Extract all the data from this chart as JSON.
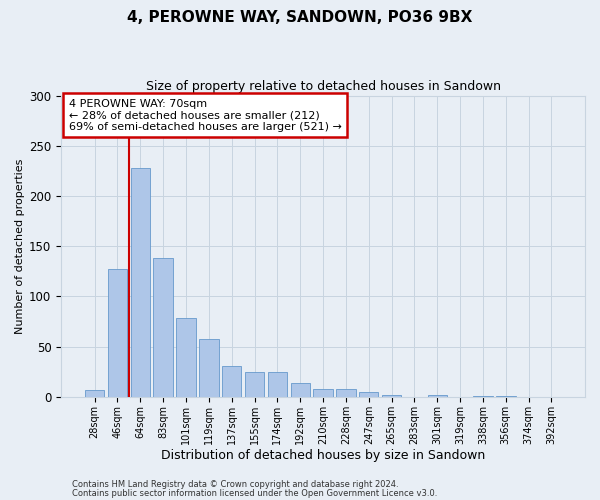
{
  "title": "4, PEROWNE WAY, SANDOWN, PO36 9BX",
  "subtitle": "Size of property relative to detached houses in Sandown",
  "xlabel": "Distribution of detached houses by size in Sandown",
  "ylabel": "Number of detached properties",
  "bin_labels": [
    "28sqm",
    "46sqm",
    "64sqm",
    "83sqm",
    "101sqm",
    "119sqm",
    "137sqm",
    "155sqm",
    "174sqm",
    "192sqm",
    "210sqm",
    "228sqm",
    "247sqm",
    "265sqm",
    "283sqm",
    "301sqm",
    "319sqm",
    "338sqm",
    "356sqm",
    "374sqm",
    "392sqm"
  ],
  "bar_values": [
    7,
    127,
    228,
    138,
    79,
    58,
    31,
    25,
    25,
    14,
    8,
    8,
    5,
    2,
    0,
    2,
    0,
    1,
    1,
    0,
    0
  ],
  "bar_color": "#aec6e8",
  "bar_edge_color": "#6699cc",
  "vline_color": "#cc0000",
  "ylim": [
    0,
    300
  ],
  "yticks": [
    0,
    50,
    100,
    150,
    200,
    250,
    300
  ],
  "annotation_title": "4 PEROWNE WAY: 70sqm",
  "annotation_line1": "← 28% of detached houses are smaller (212)",
  "annotation_line2": "69% of semi-detached houses are larger (521) →",
  "annotation_box_facecolor": "#ffffff",
  "annotation_box_edgecolor": "#cc0000",
  "footer1": "Contains HM Land Registry data © Crown copyright and database right 2024.",
  "footer2": "Contains public sector information licensed under the Open Government Licence v3.0.",
  "bg_color": "#e8eef5",
  "plot_bg_color": "#e8eef5",
  "grid_color": "#c8d4e0",
  "title_fontsize": 11,
  "subtitle_fontsize": 9,
  "xlabel_fontsize": 9,
  "ylabel_fontsize": 8,
  "annotation_fontsize": 8,
  "footer_fontsize": 6
}
